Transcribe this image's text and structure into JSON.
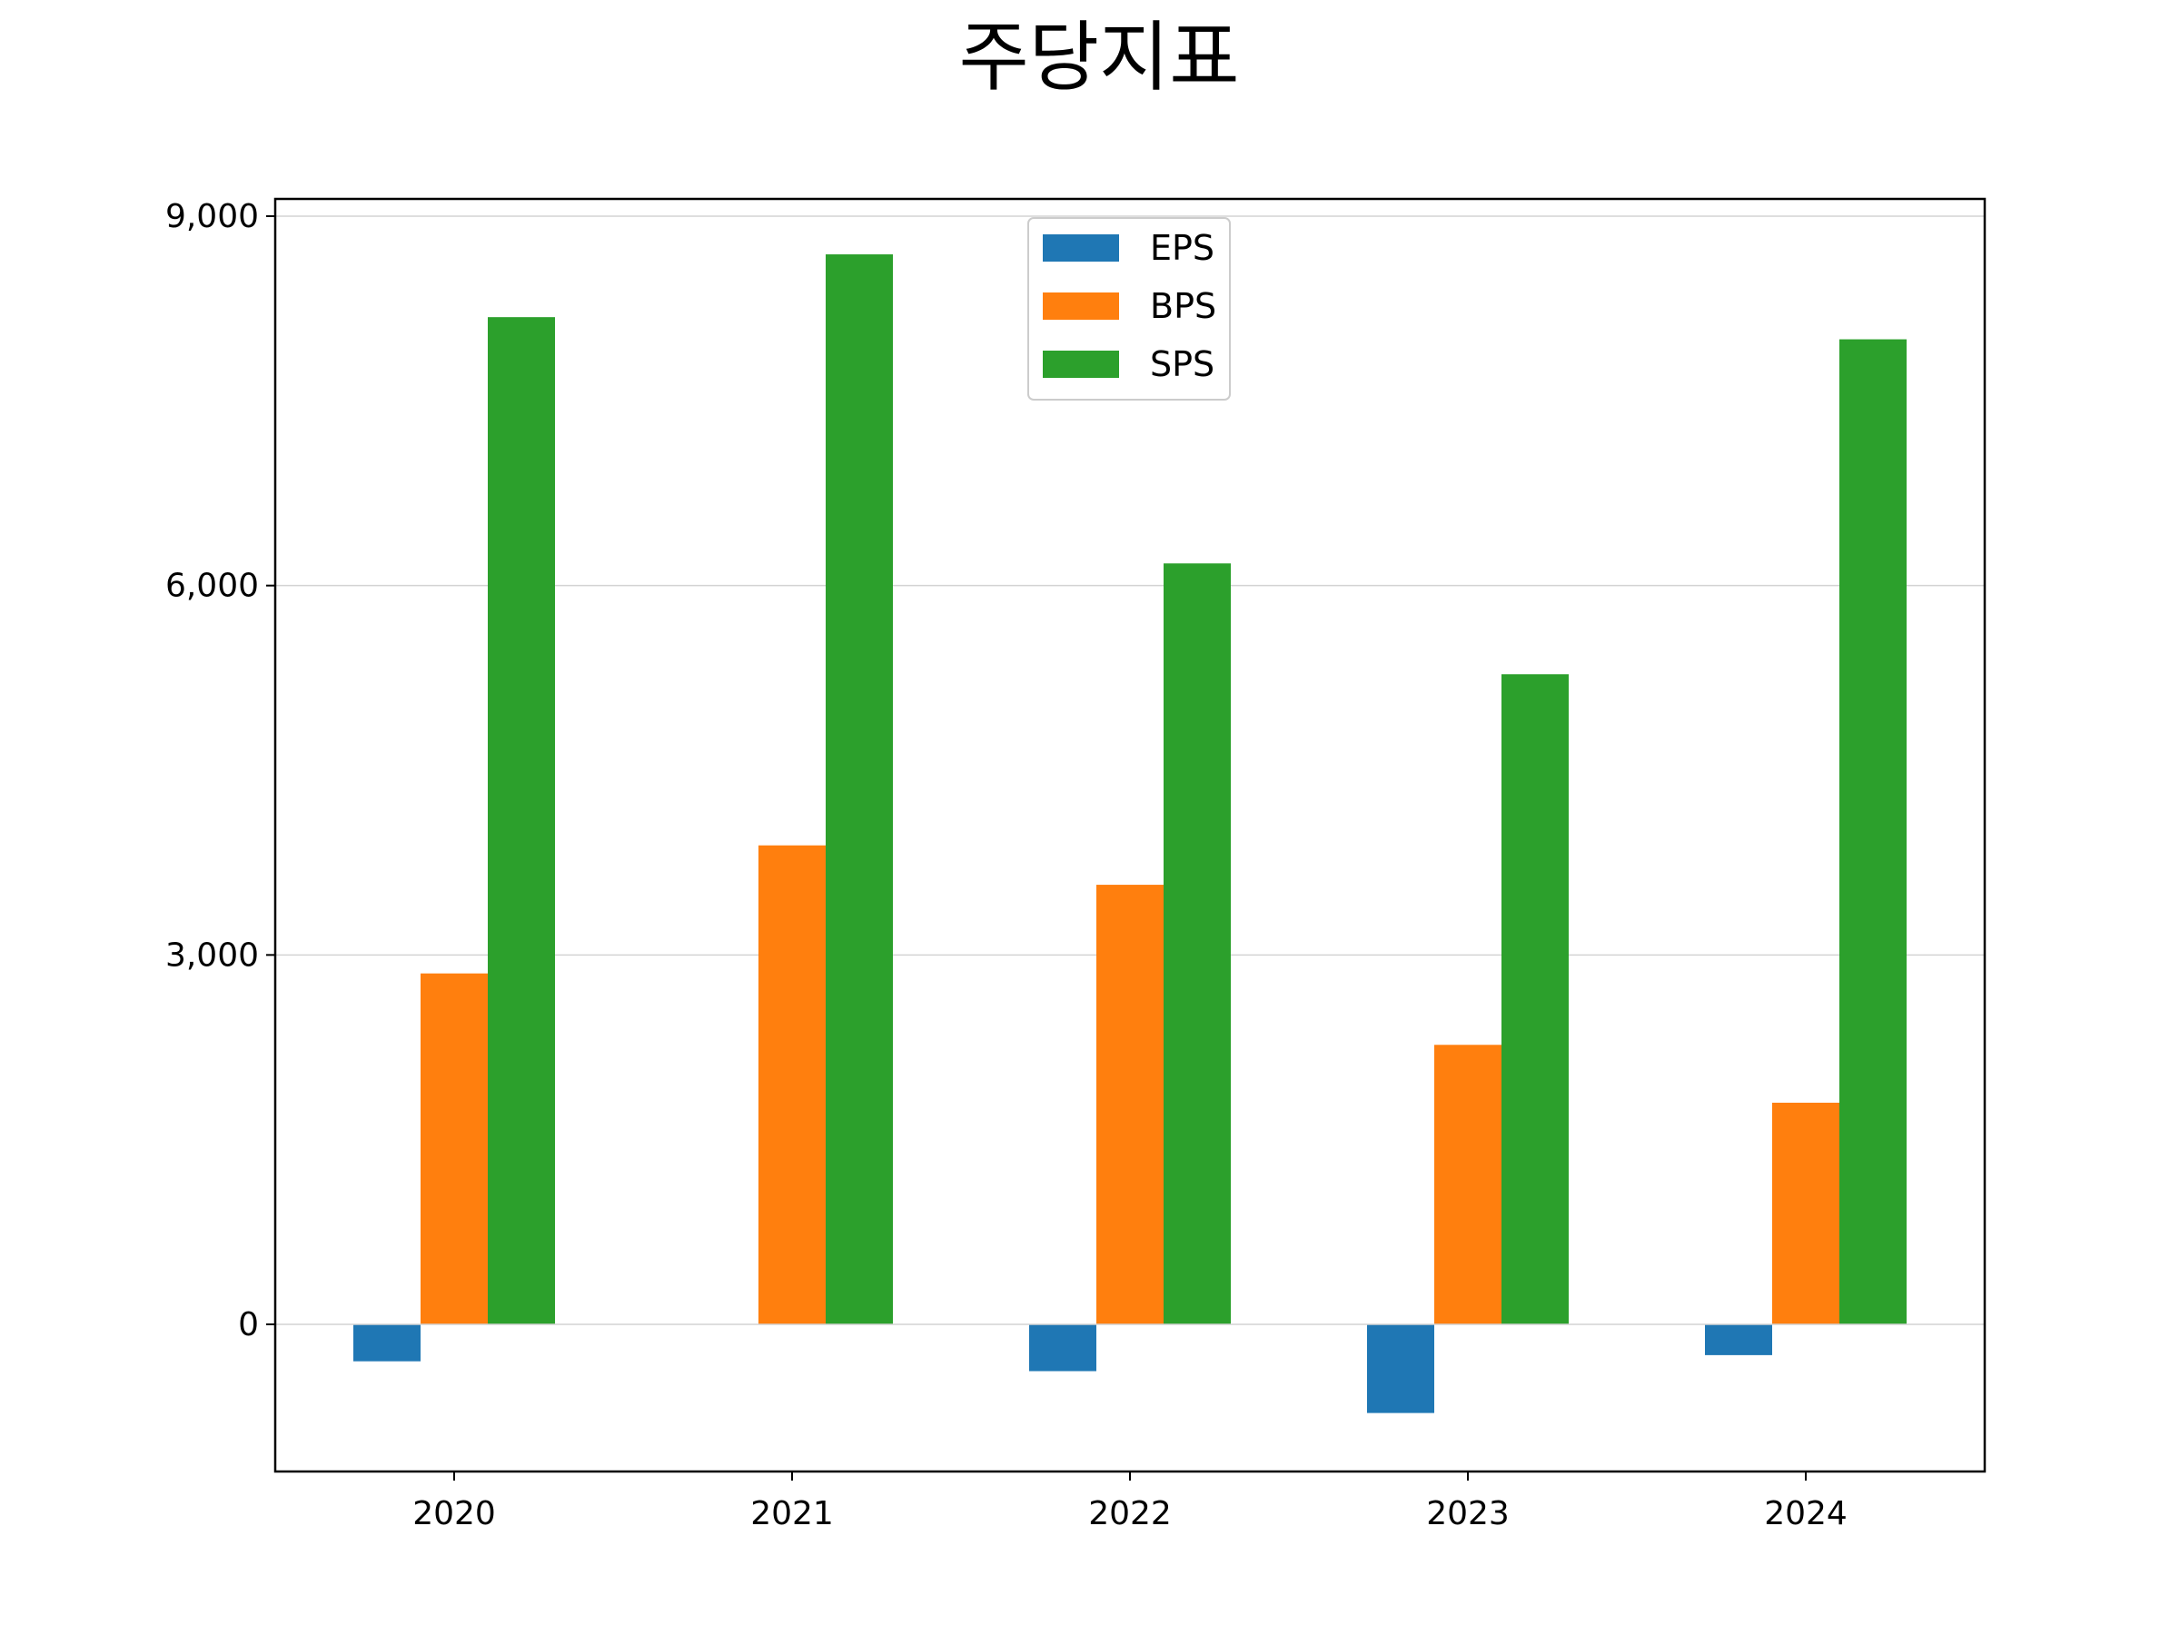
{
  "chart_data": {
    "type": "bar",
    "title": "주당지표",
    "xlabel": "",
    "ylabel": "",
    "categories": [
      "2020",
      "2021",
      "2022",
      "2023",
      "2024"
    ],
    "series": [
      {
        "name": "EPS",
        "color": "#1f77b4",
        "values": [
          -300,
          0,
          -380,
          -720,
          -250
        ]
      },
      {
        "name": "BPS",
        "color": "#ff7f0e",
        "values": [
          2850,
          3890,
          3570,
          2270,
          1800
        ]
      },
      {
        "name": "SPS",
        "color": "#2ca02c",
        "values": [
          8180,
          8690,
          6180,
          5280,
          8000
        ]
      }
    ],
    "ylim": [
      -1200,
      9150
    ],
    "yticks": [
      0,
      3000,
      6000,
      9000
    ],
    "ytick_labels": [
      "0",
      "3,000",
      "6,000",
      "9,000"
    ],
    "grid": "y",
    "legend_position": "upper-center"
  }
}
